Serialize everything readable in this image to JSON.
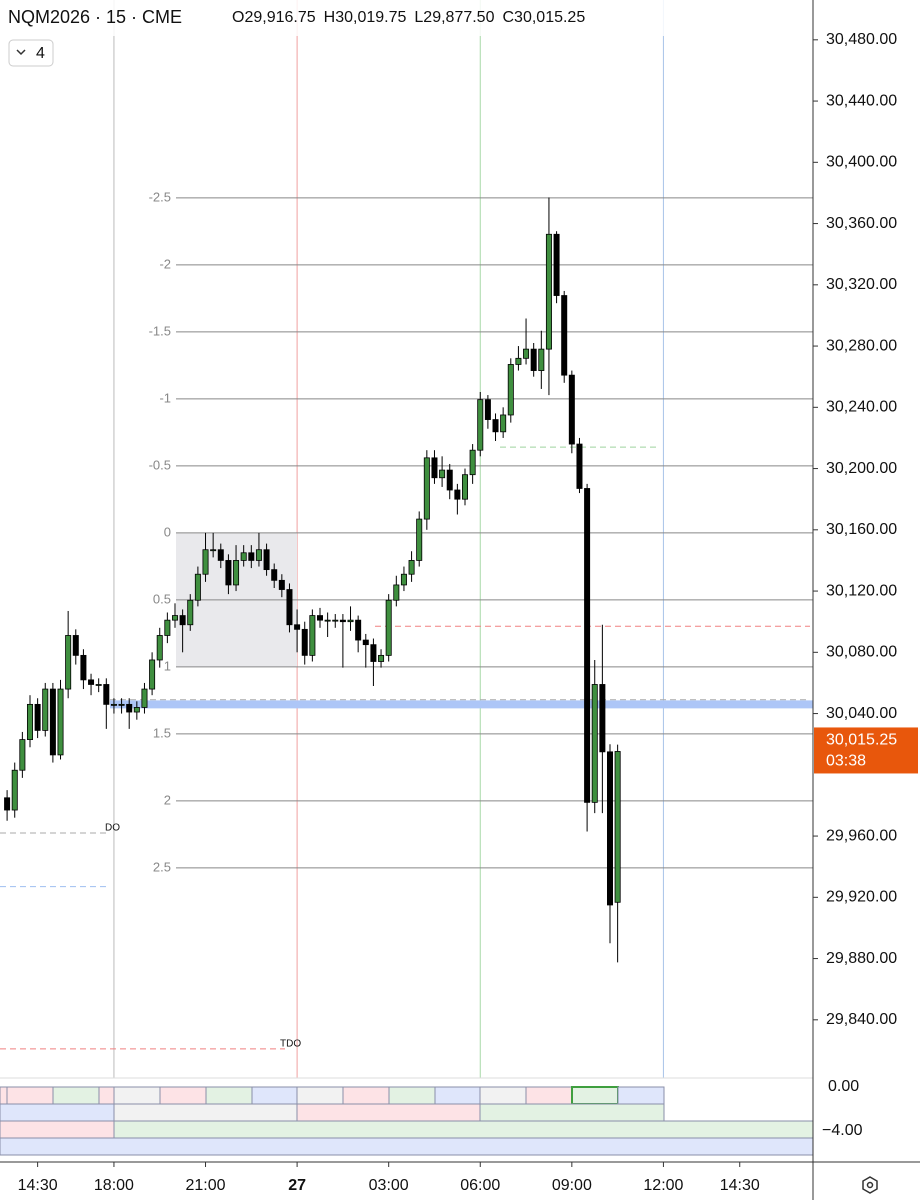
{
  "chart_data": {
    "type": "candlestick",
    "title": "NQM2026 · 15 · CME",
    "ohlc_legend": [
      {
        "label": "O",
        "value": "29,916.75"
      },
      {
        "label": "H",
        "value": "30,019.75"
      },
      {
        "label": "L",
        "value": "29,877.50"
      },
      {
        "label": "C",
        "value": "30,015.25"
      }
    ],
    "indicator_button": "4",
    "up_color": "#3f8f3f",
    "down_color": "#000000",
    "open": [
      29985,
      29977,
      30003,
      30023,
      30046,
      30029,
      30056,
      30013,
      30056,
      30091,
      30078,
      30062,
      30059,
      30059,
      30046,
      30046,
      30046,
      30041,
      30044,
      30056,
      30075,
      30091,
      30101,
      30104,
      30098,
      30114,
      30131,
      30147,
      30147,
      30140,
      30124,
      30140,
      30145,
      30140,
      30147,
      30134,
      30127,
      30121,
      30098,
      30095,
      30078,
      30104,
      30101,
      30101,
      30101,
      30100,
      30101,
      30088,
      30085,
      30074,
      30078,
      30114,
      30124,
      30131,
      30140,
      30167,
      30207,
      30194,
      30199,
      30186,
      30180,
      30196,
      30212,
      30245,
      30232,
      30224,
      30235,
      30268,
      30272,
      30278,
      30264,
      30278,
      30353,
      30313,
      30261,
      30216,
      30187,
      29982,
      30059,
      30015,
      29916.75
    ],
    "high": [
      29990,
      30008,
      30028,
      30052,
      30050,
      30060,
      30060,
      30062,
      30107,
      30095,
      30082,
      30066,
      30063,
      30063,
      30050,
      30050,
      30050,
      30048,
      30060,
      30080,
      30096,
      30106,
      30112,
      30108,
      30118,
      30136,
      30158,
      30158,
      30151,
      30144,
      30150,
      30150,
      30150,
      30158,
      30151,
      30138,
      30131,
      30125,
      30108,
      30100,
      30108,
      30109,
      30106,
      30105,
      30105,
      30110,
      30104,
      30092,
      30089,
      30082,
      30118,
      30130,
      30136,
      30146,
      30172,
      30212,
      30212,
      30208,
      30203,
      30190,
      30200,
      30216,
      30250,
      30248,
      30236,
      30240,
      30272,
      30280,
      30298,
      30282,
      30290,
      30377,
      30355,
      30316,
      30264,
      30220,
      30190,
      30075,
      30098,
      30020,
      30019.75
    ],
    "low": [
      29970,
      29972,
      29998,
      30018,
      30024,
      30025,
      30008,
      30010,
      30050,
      30072,
      30056,
      30052,
      30054,
      30030,
      30040,
      30040,
      30030,
      30036,
      30040,
      30052,
      30070,
      30086,
      30096,
      30080,
      30094,
      30110,
      30126,
      30142,
      30135,
      30118,
      30120,
      30136,
      30135,
      30136,
      30130,
      30122,
      30116,
      30093,
      30080,
      30072,
      30074,
      30096,
      30090,
      30096,
      30070,
      30094,
      30080,
      30070,
      30058,
      30070,
      30074,
      30110,
      30120,
      30126,
      30136,
      30160,
      30190,
      30188,
      30180,
      30170,
      30176,
      30190,
      30208,
      30226,
      30218,
      30220,
      30230,
      30264,
      30268,
      30260,
      30252,
      30248,
      30308,
      30256,
      30210,
      30184,
      29963,
      29975,
      29975,
      29890,
      29877.5
    ],
    "close": [
      29977,
      30003,
      30023,
      30046,
      30029,
      30056,
      30013,
      30056,
      30091,
      30078,
      30062,
      30059,
      30059,
      30046,
      30046,
      30046,
      30041,
      30044,
      30056,
      30075,
      30091,
      30101,
      30104,
      30098,
      30114,
      30131,
      30147,
      30147,
      30140,
      30124,
      30140,
      30145,
      30140,
      30147,
      30134,
      30127,
      30121,
      30098,
      30095,
      30078,
      30104,
      30101,
      30101,
      30101,
      30100,
      30101,
      30088,
      30085,
      30074,
      30078,
      30114,
      30124,
      30131,
      30140,
      30167,
      30207,
      30194,
      30199,
      30186,
      30180,
      30196,
      30212,
      30245,
      30232,
      30224,
      30235,
      30268,
      30272,
      30278,
      30264,
      30278,
      30353,
      30313,
      30261,
      30216,
      30187,
      29982,
      30059,
      30015,
      29915,
      30015.25
    ],
    "xlim": [
      -0.93,
      105.6
    ],
    "xticks": [
      {
        "value": 4,
        "label": "14:30"
      },
      {
        "value": 14,
        "label": "18:00"
      },
      {
        "value": 26,
        "label": "21:00"
      },
      {
        "value": 38,
        "label": "27"
      },
      {
        "value": 50,
        "label": "03:00"
      },
      {
        "value": 62,
        "label": "06:00"
      },
      {
        "value": 74,
        "label": "09:00"
      },
      {
        "value": 86,
        "label": "12:00"
      },
      {
        "value": 96,
        "label": "14:30"
      }
    ],
    "ylim": [
      29802,
      30506
    ],
    "yticks": [
      {
        "value": 30480,
        "label": "30,480.00"
      },
      {
        "value": 30440,
        "label": "30,440.00"
      },
      {
        "value": 30400,
        "label": "30,400.00"
      },
      {
        "value": 30360,
        "label": "30,360.00"
      },
      {
        "value": 30320,
        "label": "30,320.00"
      },
      {
        "value": 30280,
        "label": "30,280.00"
      },
      {
        "value": 30240,
        "label": "30,240.00"
      },
      {
        "value": 30200,
        "label": "30,200.00"
      },
      {
        "value": 30160,
        "label": "30,160.00"
      },
      {
        "value": 30120,
        "label": "30,120.00"
      },
      {
        "value": 30080,
        "label": "30,080.00"
      },
      {
        "value": 30040,
        "label": "30,040.00"
      },
      {
        "value": 29960,
        "label": "29,960.00"
      },
      {
        "value": 29920,
        "label": "29,920.00"
      },
      {
        "value": 29880,
        "label": "29,880.00"
      },
      {
        "value": 29840,
        "label": "29,840.00"
      }
    ],
    "last_price": {
      "value": 30015.25,
      "label": "30,015.25",
      "countdown": "03:38",
      "color": "#e8570c"
    },
    "sessions": {
      "x": [
        14,
        38,
        62,
        86
      ],
      "colors": [
        "#bbbbbb",
        "#f0a0a0",
        "#a8d8a8",
        "#a8c4e8"
      ]
    },
    "fib": {
      "ratios": [
        -2.5,
        -2,
        -1.5,
        -1,
        -0.5,
        0,
        0.5,
        1,
        1.5,
        2,
        2.5
      ],
      "prices": [
        30376.75,
        30333,
        30289.25,
        30245.5,
        30201.75,
        30158,
        30114.25,
        30070.5,
        30026.75,
        29983,
        29939.25
      ]
    },
    "levels": [
      {
        "price": 30097,
        "color": "#f08080"
      },
      {
        "price": 30049,
        "color": "#aaaaaa"
      },
      {
        "price": 30046,
        "color": "#adc6f7"
      },
      {
        "price": 30214,
        "color": "#9fd39f"
      },
      {
        "price": 29962,
        "color": "#aaaaaa",
        "label": "DO"
      },
      {
        "price": 29927,
        "color": "#9fbff0"
      },
      {
        "price": 29821,
        "color": "#f08080",
        "label": "TDO"
      }
    ],
    "lower_panel": {
      "yticks": [
        "0.00",
        "−4.00"
      ]
    }
  }
}
